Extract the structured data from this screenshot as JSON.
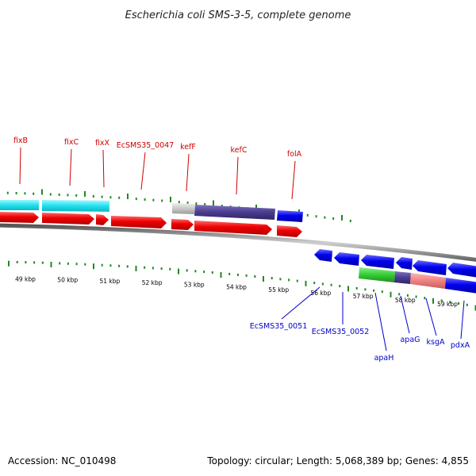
{
  "title": "Escherichia coli SMS-3-5, complete genome",
  "footer": {
    "accession": "Accession: NC_010498",
    "summary": "Topology: circular; Length: 5,068,389 bp; Genes: 4,855"
  },
  "colors": {
    "forward": "#ee0000",
    "reverse": "#0000ee",
    "cyan": "#22e0ee",
    "purple": "#4a3c8e",
    "gray": "#c8c8c8",
    "green": "#33cc33",
    "pink": "#f08080",
    "backbone": "#888888",
    "tick": "#228822",
    "label_top": "#cc0000",
    "label_bottom": "#0000cc"
  },
  "kbp_labels": [
    "49 kbp",
    "50 kbp",
    "51 kbp",
    "52 kbp",
    "53 kbp",
    "54 kbp",
    "55 kbp",
    "56 kbp",
    "57 kbp",
    "58 kbp",
    "59 kbp"
  ],
  "top_labels": [
    {
      "text": "fixB"
    },
    {
      "text": "fixC"
    },
    {
      "text": "fixX"
    },
    {
      "text": "EcSMS35_0047"
    },
    {
      "text": "kefF"
    },
    {
      "text": "kefC"
    },
    {
      "text": "folA"
    }
  ],
  "bottom_labels": [
    {
      "text": "EcSMS35_0051"
    },
    {
      "text": "EcSMS35_0052"
    },
    {
      "text": "apaH"
    },
    {
      "text": "apaG"
    },
    {
      "text": "ksgA"
    },
    {
      "text": "pdxA"
    }
  ]
}
